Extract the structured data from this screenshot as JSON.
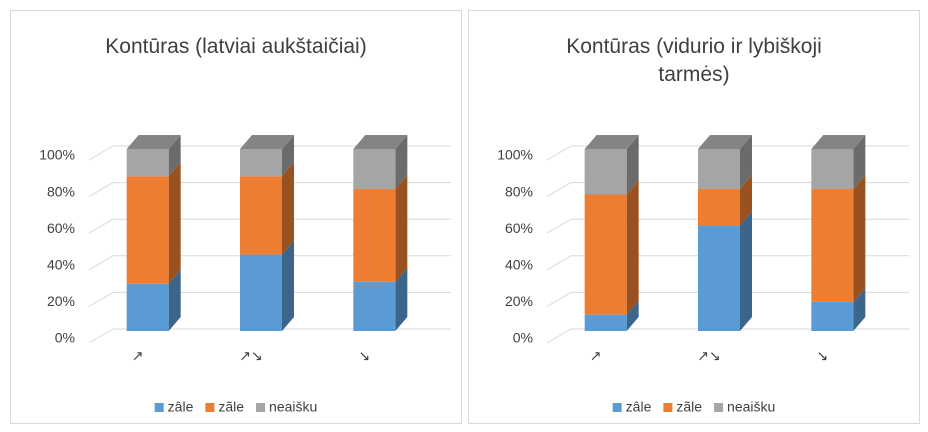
{
  "chart_data": [
    {
      "type": "bar",
      "stacked": true,
      "title": "Kontūras (latviai aukštaičiai)",
      "categories": [
        "↗",
        "↗↘",
        "↘"
      ],
      "series": [
        {
          "name": "zâle",
          "color": "#5b9bd5",
          "values": [
            26,
            42,
            27
          ]
        },
        {
          "name": "zãle",
          "color": "#ed7d31",
          "values": [
            59,
            43,
            51
          ]
        },
        {
          "name": "neaišku",
          "color": "#a5a5a5",
          "values": [
            15,
            15,
            22
          ]
        }
      ],
      "ylim": [
        0,
        100
      ],
      "yticks": [
        {
          "value": 0,
          "label": "0%"
        },
        {
          "value": 20,
          "label": "20%"
        },
        {
          "value": 40,
          "label": "40%"
        },
        {
          "value": 60,
          "label": "60%"
        },
        {
          "value": 80,
          "label": "80%"
        },
        {
          "value": 100,
          "label": "100%"
        }
      ],
      "grid": true,
      "legend": "bottom"
    },
    {
      "type": "bar",
      "stacked": true,
      "title": "Kontūras (vidurio ir lybiškoji tarmės)",
      "categories": [
        "↗",
        "↗↘",
        "↘"
      ],
      "series": [
        {
          "name": "zâle",
          "color": "#5b9bd5",
          "values": [
            9,
            58,
            16
          ]
        },
        {
          "name": "zãle",
          "color": "#ed7d31",
          "values": [
            66,
            20,
            62
          ]
        },
        {
          "name": "neaišku",
          "color": "#a5a5a5",
          "values": [
            25,
            22,
            22
          ]
        }
      ],
      "ylim": [
        0,
        100
      ],
      "yticks": [
        {
          "value": 0,
          "label": "0%"
        },
        {
          "value": 20,
          "label": "20%"
        },
        {
          "value": 40,
          "label": "40%"
        },
        {
          "value": 60,
          "label": "60%"
        },
        {
          "value": 80,
          "label": "80%"
        },
        {
          "value": 100,
          "label": "100%"
        }
      ],
      "grid": true,
      "legend": "bottom"
    }
  ]
}
